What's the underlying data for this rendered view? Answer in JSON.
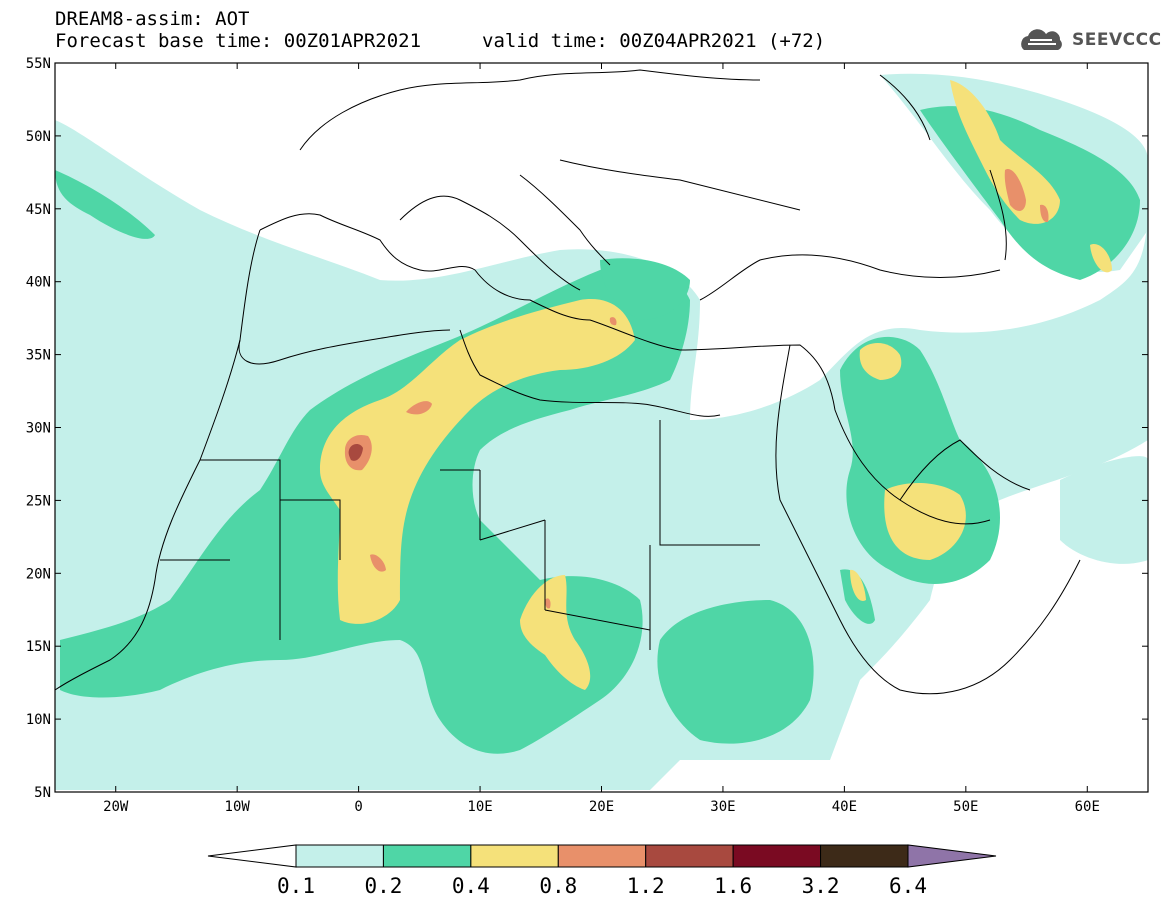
{
  "header": {
    "title": "DREAM8-assim: AOT",
    "forecast_base": "Forecast base time: 00Z01APR2021",
    "valid_time": "valid time: 00Z04APR2021 (+72)",
    "logo_text": "SEEVCCC",
    "logo_icon": "cloud-logo-icon"
  },
  "map": {
    "lon_range": [
      -25,
      65
    ],
    "lat_range": [
      5,
      55
    ],
    "lat_labels": [
      "55N",
      "50N",
      "45N",
      "40N",
      "35N",
      "30N",
      "25N",
      "20N",
      "15N",
      "10N",
      "5N"
    ],
    "lon_labels": [
      "20W",
      "10W",
      "0",
      "10E",
      "20E",
      "30E",
      "40E",
      "50E",
      "60E"
    ]
  },
  "colorbar": {
    "colors": [
      "#c4f0ea",
      "#4fd6a6",
      "#f5e17a",
      "#e8906a",
      "#a8493f",
      "#7a0a22",
      "#3d2a18",
      "#8f74a8"
    ],
    "labels": [
      "0.1",
      "0.2",
      "0.4",
      "0.8",
      "1.2",
      "1.6",
      "3.2",
      "6.4"
    ]
  }
}
